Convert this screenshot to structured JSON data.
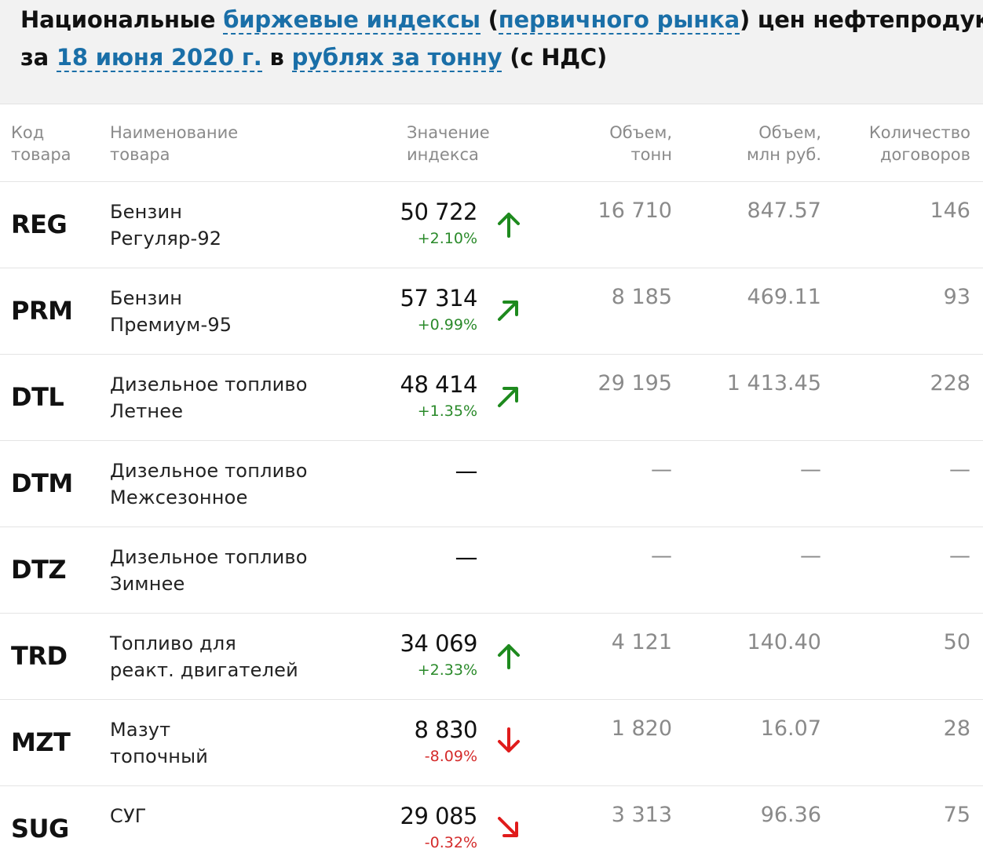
{
  "header": {
    "line1": {
      "t1": "Национальные ",
      "link1": "биржевые индексы",
      "t2": " (",
      "link2": "первичного рынка",
      "t3": ") цен нефтепродуктов"
    },
    "line2": {
      "t1": "за ",
      "link_date": "18 июня 2020 г.",
      "t2": " в ",
      "link_unit": "рублях за тонну",
      "t3": " (с НДС)"
    }
  },
  "columns": {
    "code": [
      "Код",
      "товара"
    ],
    "name": [
      "Наименование",
      "товара"
    ],
    "index": [
      "Значение",
      "индекса"
    ],
    "vol_t": [
      "Объем,",
      "тонн"
    ],
    "vol_r": [
      "Объем,",
      "млн руб."
    ],
    "count": [
      "Количество",
      "договоров"
    ]
  },
  "colors": {
    "up": "#1e8a1e",
    "down": "#e01b1b",
    "link": "#1a6fa8"
  },
  "rows": [
    {
      "code": "REG",
      "name1": "Бензин",
      "name2": "Регуляр-92",
      "value": "50 722",
      "change": "+2.10%",
      "direction": "up",
      "arrow": "arrow-up-icon",
      "vol_t": "16 710",
      "vol_r": "847.57",
      "count": "146"
    },
    {
      "code": "PRM",
      "name1": "Бензин",
      "name2": "Премиум-95",
      "value": "57 314",
      "change": "+0.99%",
      "direction": "up",
      "arrow": "arrow-up-right-icon",
      "vol_t": "8 185",
      "vol_r": "469.11",
      "count": "93"
    },
    {
      "code": "DTL",
      "name1": "Дизельное топливо",
      "name2": "Летнее",
      "value": "48 414",
      "change": "+1.35%",
      "direction": "up",
      "arrow": "arrow-up-right-icon",
      "vol_t": "29 195",
      "vol_r": "1 413.45",
      "count": "228"
    },
    {
      "code": "DTM",
      "name1": "Дизельное топливо",
      "name2": "Межсезонное",
      "value": "—",
      "change": "",
      "direction": "none",
      "arrow": "",
      "vol_t": "—",
      "vol_r": "—",
      "count": "—"
    },
    {
      "code": "DTZ",
      "name1": "Дизельное топливо",
      "name2": "Зимнее",
      "value": "—",
      "change": "",
      "direction": "none",
      "arrow": "",
      "vol_t": "—",
      "vol_r": "—",
      "count": "—"
    },
    {
      "code": "TRD",
      "name1": "Топливо для",
      "name2": "реакт. двигателей",
      "value": "34 069",
      "change": "+2.33%",
      "direction": "up",
      "arrow": "arrow-up-icon",
      "vol_t": "4 121",
      "vol_r": "140.40",
      "count": "50"
    },
    {
      "code": "MZT",
      "name1": "Мазут",
      "name2": "топочный",
      "value": "8 830",
      "change": "-8.09%",
      "direction": "down",
      "arrow": "arrow-down-icon",
      "vol_t": "1 820",
      "vol_r": "16.07",
      "count": "28"
    },
    {
      "code": "SUG",
      "name1": "СУГ",
      "name2": "",
      "value": "29 085",
      "change": "-0.32%",
      "direction": "down",
      "arrow": "arrow-down-right-icon",
      "vol_t": "3 313",
      "vol_r": "96.36",
      "count": "75"
    }
  ]
}
